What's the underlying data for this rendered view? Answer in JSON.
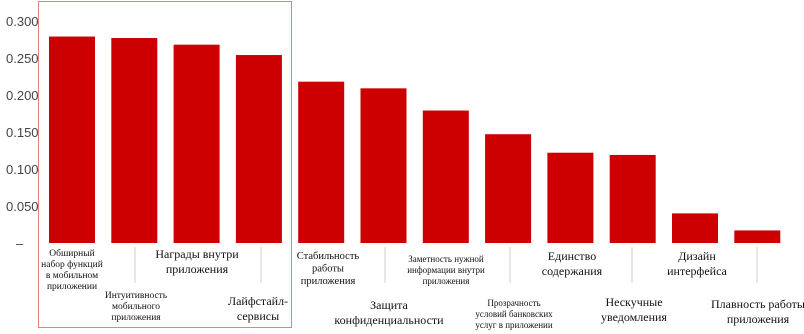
{
  "chart_data": {
    "type": "bar",
    "title": "",
    "xlabel": "",
    "ylabel": "",
    "ylim": [
      0,
      0.3
    ],
    "y_ticks": [
      "–",
      "0.050",
      "0.100",
      "0.150",
      "0.200",
      "0.250",
      "0.300"
    ],
    "grid": false,
    "categories": [
      "Обширный набор функций в мобильном приложении",
      "Интуитивность мобильного приложения",
      "Награды внутри приложения",
      "Лайфстайл-сервисы",
      "Стабильность работы приложения",
      "Защита конфиденциальности",
      "Заметность нужной информации внутри приложения",
      "Прозрачность условий банковских услуг в приложении",
      "Единство содержания",
      "Нескучные уведомления",
      "Дизайн интерфейса",
      "Плавность работы приложения"
    ],
    "values": [
      0.279,
      0.277,
      0.268,
      0.254,
      0.218,
      0.209,
      0.179,
      0.147,
      0.122,
      0.119,
      0.04,
      0.017
    ],
    "bar_color": "#cc0000",
    "highlight_box_color": "#e88080",
    "highlighted_categories": [
      0,
      1,
      2,
      3
    ]
  }
}
